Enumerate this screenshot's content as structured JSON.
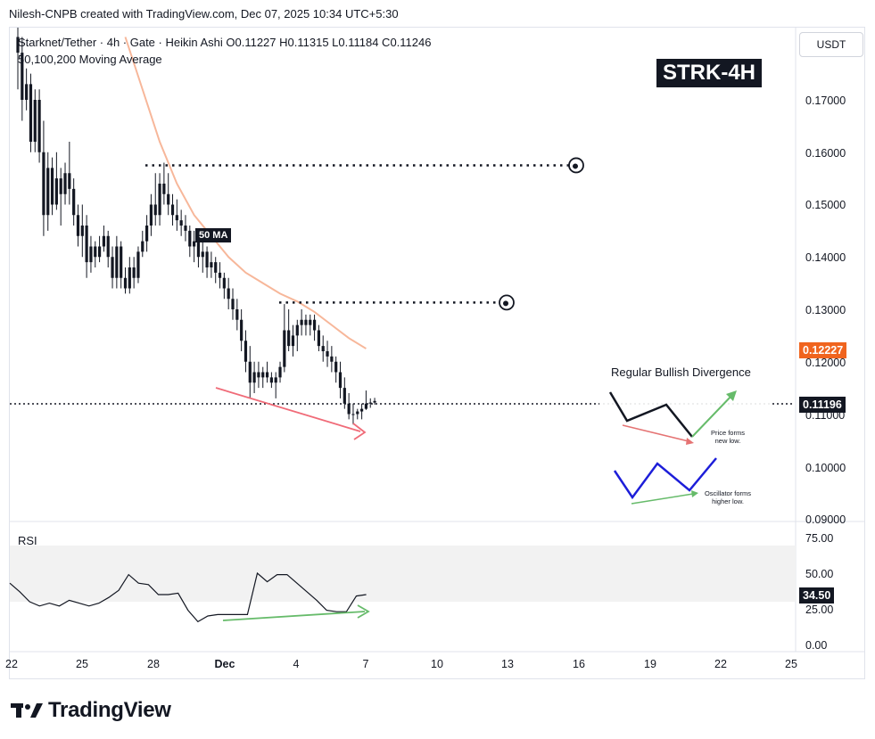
{
  "header": {
    "credit": "Nilesh-CNPB created with TradingView.com, Dec 07, 2025 10:34 UTC+5:30"
  },
  "legend": {
    "line1": "Starknet/Tether · 4h · Gate · Heikin Ashi  O0.11227  H0.11315  L0.11184  C0.11246",
    "line2": "50,100,200 Moving Average"
  },
  "badge": "STRK-4H",
  "currency_button": "USDT",
  "ma_label": "50 MA",
  "price_tags": {
    "ma": "0.12227",
    "last": "0.11196"
  },
  "rsi": {
    "title": "RSI",
    "value_tag": "34.50"
  },
  "divergence": {
    "title": "Regular Bullish Divergence",
    "note_price": "Price forms new low.",
    "note_osc": "Oscillator forms higher low."
  },
  "brand": "TradingView",
  "colors": {
    "ma": "#f7b79a",
    "ma_tag": "#f0641e",
    "divergence_price": "#f06b78",
    "divergence_rsi": "#66bb6a",
    "rsi_line": "#131722",
    "candle": "#131722",
    "rsi_band": "#f2f2f2",
    "inset_osc": "#1d1ed9"
  },
  "chart_data": {
    "type": "candlestick",
    "title": "Starknet/Tether · 4h · Gate · Heikin Ashi",
    "price_axis": {
      "ticks": [
        "0.17000",
        "0.16000",
        "0.15000",
        "0.14000",
        "0.13000",
        "0.12000",
        "0.11000",
        "0.10000",
        "0.09000"
      ],
      "ylim": [
        0.0875,
        0.182
      ]
    },
    "x_axis": {
      "ticks": [
        "22",
        "25",
        "28",
        "Dec",
        "4",
        "7",
        "10",
        "13",
        "16",
        "19",
        "22",
        "25"
      ]
    },
    "candles": [
      {
        "t": 0,
        "o": 0.182,
        "h": 0.186,
        "l": 0.172,
        "c": 0.179
      },
      {
        "t": 1,
        "o": 0.179,
        "h": 0.182,
        "l": 0.166,
        "c": 0.17
      },
      {
        "t": 2,
        "o": 0.17,
        "h": 0.176,
        "l": 0.168,
        "c": 0.173
      },
      {
        "t": 3,
        "o": 0.173,
        "h": 0.175,
        "l": 0.16,
        "c": 0.162
      },
      {
        "t": 4,
        "o": 0.162,
        "h": 0.172,
        "l": 0.16,
        "c": 0.17
      },
      {
        "t": 5,
        "o": 0.17,
        "h": 0.172,
        "l": 0.158,
        "c": 0.16
      },
      {
        "t": 6,
        "o": 0.16,
        "h": 0.166,
        "l": 0.144,
        "c": 0.148
      },
      {
        "t": 7,
        "o": 0.148,
        "h": 0.16,
        "l": 0.145,
        "c": 0.157
      },
      {
        "t": 8,
        "o": 0.157,
        "h": 0.159,
        "l": 0.148,
        "c": 0.15
      },
      {
        "t": 9,
        "o": 0.15,
        "h": 0.16,
        "l": 0.149,
        "c": 0.155
      },
      {
        "t": 10,
        "o": 0.155,
        "h": 0.157,
        "l": 0.146,
        "c": 0.152
      },
      {
        "t": 11,
        "o": 0.152,
        "h": 0.158,
        "l": 0.15,
        "c": 0.156
      },
      {
        "t": 12,
        "o": 0.156,
        "h": 0.162,
        "l": 0.15,
        "c": 0.153
      },
      {
        "t": 13,
        "o": 0.153,
        "h": 0.155,
        "l": 0.146,
        "c": 0.148
      },
      {
        "t": 14,
        "o": 0.148,
        "h": 0.15,
        "l": 0.142,
        "c": 0.144
      },
      {
        "t": 15,
        "o": 0.144,
        "h": 0.15,
        "l": 0.14,
        "c": 0.146
      },
      {
        "t": 16,
        "o": 0.146,
        "h": 0.148,
        "l": 0.136,
        "c": 0.139
      },
      {
        "t": 17,
        "o": 0.139,
        "h": 0.144,
        "l": 0.137,
        "c": 0.142
      },
      {
        "t": 18,
        "o": 0.142,
        "h": 0.143,
        "l": 0.138,
        "c": 0.14
      },
      {
        "t": 19,
        "o": 0.14,
        "h": 0.144,
        "l": 0.139,
        "c": 0.142
      },
      {
        "t": 20,
        "o": 0.142,
        "h": 0.146,
        "l": 0.141,
        "c": 0.144
      },
      {
        "t": 21,
        "o": 0.144,
        "h": 0.145,
        "l": 0.138,
        "c": 0.14
      },
      {
        "t": 22,
        "o": 0.14,
        "h": 0.142,
        "l": 0.134,
        "c": 0.136
      },
      {
        "t": 23,
        "o": 0.136,
        "h": 0.144,
        "l": 0.134,
        "c": 0.142
      },
      {
        "t": 24,
        "o": 0.142,
        "h": 0.143,
        "l": 0.134,
        "c": 0.136
      },
      {
        "t": 25,
        "o": 0.136,
        "h": 0.138,
        "l": 0.133,
        "c": 0.134
      },
      {
        "t": 26,
        "o": 0.134,
        "h": 0.14,
        "l": 0.133,
        "c": 0.138
      },
      {
        "t": 27,
        "o": 0.138,
        "h": 0.14,
        "l": 0.134,
        "c": 0.136
      },
      {
        "t": 28,
        "o": 0.136,
        "h": 0.142,
        "l": 0.135,
        "c": 0.141
      },
      {
        "t": 29,
        "o": 0.141,
        "h": 0.145,
        "l": 0.14,
        "c": 0.143
      },
      {
        "t": 30,
        "o": 0.143,
        "h": 0.148,
        "l": 0.141,
        "c": 0.146
      },
      {
        "t": 31,
        "o": 0.146,
        "h": 0.152,
        "l": 0.144,
        "c": 0.15
      },
      {
        "t": 32,
        "o": 0.15,
        "h": 0.156,
        "l": 0.146,
        "c": 0.148
      },
      {
        "t": 33,
        "o": 0.148,
        "h": 0.156,
        "l": 0.146,
        "c": 0.154
      },
      {
        "t": 34,
        "o": 0.154,
        "h": 0.158,
        "l": 0.15,
        "c": 0.152
      },
      {
        "t": 35,
        "o": 0.152,
        "h": 0.156,
        "l": 0.148,
        "c": 0.15
      },
      {
        "t": 36,
        "o": 0.15,
        "h": 0.152,
        "l": 0.146,
        "c": 0.148
      },
      {
        "t": 37,
        "o": 0.148,
        "h": 0.151,
        "l": 0.145,
        "c": 0.147
      },
      {
        "t": 38,
        "o": 0.147,
        "h": 0.149,
        "l": 0.144,
        "c": 0.146
      },
      {
        "t": 39,
        "o": 0.146,
        "h": 0.148,
        "l": 0.143,
        "c": 0.145
      },
      {
        "t": 40,
        "o": 0.145,
        "h": 0.146,
        "l": 0.14,
        "c": 0.142
      },
      {
        "t": 41,
        "o": 0.142,
        "h": 0.145,
        "l": 0.139,
        "c": 0.143
      },
      {
        "t": 42,
        "o": 0.143,
        "h": 0.144,
        "l": 0.138,
        "c": 0.14
      },
      {
        "t": 43,
        "o": 0.14,
        "h": 0.143,
        "l": 0.137,
        "c": 0.141
      },
      {
        "t": 44,
        "o": 0.141,
        "h": 0.142,
        "l": 0.136,
        "c": 0.138
      },
      {
        "t": 45,
        "o": 0.138,
        "h": 0.141,
        "l": 0.136,
        "c": 0.139
      },
      {
        "t": 46,
        "o": 0.139,
        "h": 0.14,
        "l": 0.135,
        "c": 0.137
      },
      {
        "t": 47,
        "o": 0.137,
        "h": 0.139,
        "l": 0.134,
        "c": 0.136
      },
      {
        "t": 48,
        "o": 0.136,
        "h": 0.137,
        "l": 0.132,
        "c": 0.134
      },
      {
        "t": 49,
        "o": 0.134,
        "h": 0.136,
        "l": 0.13,
        "c": 0.132
      },
      {
        "t": 50,
        "o": 0.132,
        "h": 0.134,
        "l": 0.128,
        "c": 0.13
      },
      {
        "t": 51,
        "o": 0.13,
        "h": 0.132,
        "l": 0.126,
        "c": 0.128
      },
      {
        "t": 52,
        "o": 0.128,
        "h": 0.13,
        "l": 0.122,
        "c": 0.124
      },
      {
        "t": 53,
        "o": 0.124,
        "h": 0.126,
        "l": 0.118,
        "c": 0.12
      },
      {
        "t": 54,
        "o": 0.12,
        "h": 0.123,
        "l": 0.113,
        "c": 0.116
      },
      {
        "t": 55,
        "o": 0.116,
        "h": 0.12,
        "l": 0.114,
        "c": 0.118
      },
      {
        "t": 56,
        "o": 0.118,
        "h": 0.12,
        "l": 0.115,
        "c": 0.117
      },
      {
        "t": 57,
        "o": 0.117,
        "h": 0.119,
        "l": 0.115,
        "c": 0.118
      },
      {
        "t": 58,
        "o": 0.118,
        "h": 0.12,
        "l": 0.116,
        "c": 0.117
      },
      {
        "t": 59,
        "o": 0.117,
        "h": 0.118,
        "l": 0.115,
        "c": 0.116
      },
      {
        "t": 60,
        "o": 0.116,
        "h": 0.118,
        "l": 0.113,
        "c": 0.117
      },
      {
        "t": 61,
        "o": 0.117,
        "h": 0.12,
        "l": 0.116,
        "c": 0.119
      },
      {
        "t": 62,
        "o": 0.119,
        "h": 0.131,
        "l": 0.118,
        "c": 0.126
      },
      {
        "t": 63,
        "o": 0.126,
        "h": 0.13,
        "l": 0.122,
        "c": 0.123
      },
      {
        "t": 64,
        "o": 0.123,
        "h": 0.127,
        "l": 0.121,
        "c": 0.125
      },
      {
        "t": 65,
        "o": 0.125,
        "h": 0.128,
        "l": 0.122,
        "c": 0.127
      },
      {
        "t": 66,
        "o": 0.127,
        "h": 0.13,
        "l": 0.125,
        "c": 0.128
      },
      {
        "t": 67,
        "o": 0.128,
        "h": 0.129,
        "l": 0.125,
        "c": 0.127
      },
      {
        "t": 68,
        "o": 0.127,
        "h": 0.129,
        "l": 0.125,
        "c": 0.128
      },
      {
        "t": 69,
        "o": 0.128,
        "h": 0.129,
        "l": 0.124,
        "c": 0.126
      },
      {
        "t": 70,
        "o": 0.126,
        "h": 0.127,
        "l": 0.122,
        "c": 0.123
      },
      {
        "t": 71,
        "o": 0.123,
        "h": 0.125,
        "l": 0.12,
        "c": 0.122
      },
      {
        "t": 72,
        "o": 0.122,
        "h": 0.124,
        "l": 0.119,
        "c": 0.121
      },
      {
        "t": 73,
        "o": 0.121,
        "h": 0.123,
        "l": 0.118,
        "c": 0.12
      },
      {
        "t": 74,
        "o": 0.12,
        "h": 0.121,
        "l": 0.116,
        "c": 0.118
      },
      {
        "t": 75,
        "o": 0.118,
        "h": 0.12,
        "l": 0.113,
        "c": 0.115
      },
      {
        "t": 76,
        "o": 0.115,
        "h": 0.117,
        "l": 0.111,
        "c": 0.112
      },
      {
        "t": 77,
        "o": 0.112,
        "h": 0.114,
        "l": 0.109,
        "c": 0.11
      },
      {
        "t": 78,
        "o": 0.11,
        "h": 0.112,
        "l": 0.108,
        "c": 0.11
      },
      {
        "t": 79,
        "o": 0.11,
        "h": 0.111,
        "l": 0.109,
        "c": 0.1105
      },
      {
        "t": 80,
        "o": 0.1105,
        "h": 0.112,
        "l": 0.109,
        "c": 0.111
      },
      {
        "t": 81,
        "o": 0.111,
        "h": 0.1145,
        "l": 0.1108,
        "c": 0.112
      },
      {
        "t": 82,
        "o": 0.112,
        "h": 0.113,
        "l": 0.1112,
        "c": 0.1122
      },
      {
        "t": 83,
        "o": 0.1122,
        "h": 0.1131,
        "l": 0.1118,
        "c": 0.1125
      }
    ],
    "ma50": [
      {
        "t": 25,
        "v": 0.182
      },
      {
        "t": 29,
        "v": 0.172
      },
      {
        "t": 33,
        "v": 0.162
      },
      {
        "t": 37,
        "v": 0.154
      },
      {
        "t": 41,
        "v": 0.148
      },
      {
        "t": 45,
        "v": 0.144
      },
      {
        "t": 49,
        "v": 0.14
      },
      {
        "t": 53,
        "v": 0.137
      },
      {
        "t": 57,
        "v": 0.135
      },
      {
        "t": 61,
        "v": 0.133
      },
      {
        "t": 65,
        "v": 0.1315
      },
      {
        "t": 69,
        "v": 0.1295
      },
      {
        "t": 73,
        "v": 0.127
      },
      {
        "t": 77,
        "v": 0.1245
      },
      {
        "t": 81,
        "v": 0.1225
      }
    ],
    "resistance_levels": [
      0.1575,
      0.1313
    ],
    "last_price": 0.11196,
    "rsi_axis": {
      "ticks": [
        "75.00",
        "50.00",
        "25.00",
        "0.00"
      ],
      "ylim": [
        0,
        75
      ]
    },
    "rsi": [
      {
        "t": 0,
        "v": 43
      },
      {
        "t": 3,
        "v": 37
      },
      {
        "t": 6,
        "v": 30
      },
      {
        "t": 9,
        "v": 27
      },
      {
        "t": 12,
        "v": 29
      },
      {
        "t": 15,
        "v": 27
      },
      {
        "t": 18,
        "v": 31
      },
      {
        "t": 21,
        "v": 29
      },
      {
        "t": 24,
        "v": 27
      },
      {
        "t": 27,
        "v": 29
      },
      {
        "t": 30,
        "v": 33
      },
      {
        "t": 33,
        "v": 38
      },
      {
        "t": 36,
        "v": 49
      },
      {
        "t": 39,
        "v": 43
      },
      {
        "t": 42,
        "v": 42
      },
      {
        "t": 45,
        "v": 35
      },
      {
        "t": 48,
        "v": 35
      },
      {
        "t": 51,
        "v": 36
      },
      {
        "t": 54,
        "v": 24
      },
      {
        "t": 57,
        "v": 16
      },
      {
        "t": 60,
        "v": 20
      },
      {
        "t": 63,
        "v": 21
      },
      {
        "t": 66,
        "v": 21
      },
      {
        "t": 69,
        "v": 21
      },
      {
        "t": 72,
        "v": 21
      },
      {
        "t": 75,
        "v": 50
      },
      {
        "t": 78,
        "v": 44
      },
      {
        "t": 81,
        "v": 49
      },
      {
        "t": 84,
        "v": 49
      },
      {
        "t": 87,
        "v": 43
      },
      {
        "t": 90,
        "v": 37
      },
      {
        "t": 93,
        "v": 31
      },
      {
        "t": 96,
        "v": 24
      },
      {
        "t": 99,
        "v": 23
      },
      {
        "t": 102,
        "v": 23
      },
      {
        "t": 105,
        "v": 34
      },
      {
        "t": 108,
        "v": 35
      }
    ]
  }
}
